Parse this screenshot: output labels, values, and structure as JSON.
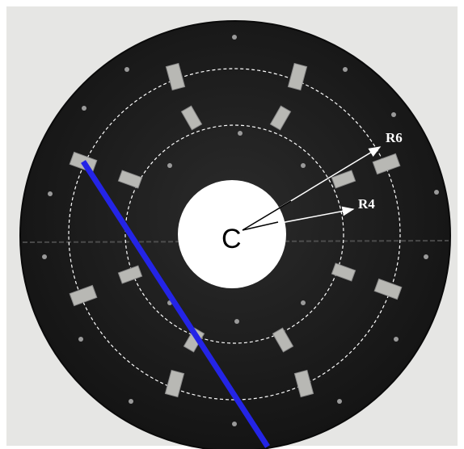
{
  "labels": {
    "r6": "R6",
    "r4": "R4",
    "center": "C"
  }
}
